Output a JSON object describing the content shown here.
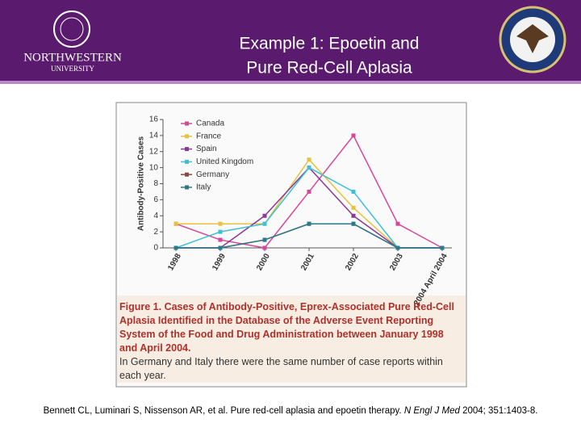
{
  "header": {
    "title_line1": "Example 1: Epoetin and",
    "title_line2": "Pure Red-Cell Aplasia",
    "logo_left_name": "NORTHWESTERN",
    "logo_left_sub": "UNIVERSITY"
  },
  "chart_data": {
    "type": "line",
    "ylabel": "Antibody-Positive Cases",
    "categories": [
      "1998",
      "1999",
      "2000",
      "2001",
      "2002",
      "2003",
      "2004 April 2004"
    ],
    "ylim": [
      0,
      16
    ],
    "yticks": [
      0,
      2,
      4,
      6,
      8,
      10,
      12,
      14,
      16
    ],
    "grid": false,
    "legend": "upper left",
    "series": [
      {
        "name": "Canada",
        "color": "#d6479a",
        "values": [
          3,
          1,
          0,
          7,
          14,
          3,
          0
        ]
      },
      {
        "name": "France",
        "color": "#e8c23c",
        "values": [
          3,
          3,
          3,
          11,
          5,
          0,
          0
        ]
      },
      {
        "name": "Spain",
        "color": "#8a3a96",
        "values": [
          0,
          0,
          4,
          10,
          4,
          0,
          0
        ]
      },
      {
        "name": "United Kingdom",
        "color": "#3cc0d8",
        "values": [
          0,
          2,
          3,
          10,
          7,
          0,
          0
        ]
      },
      {
        "name": "Germany",
        "color": "#8b4a3a",
        "values": [
          0,
          0,
          1,
          3,
          3,
          0,
          0
        ]
      },
      {
        "name": "Italy",
        "color": "#2a7a8a",
        "values": [
          0,
          0,
          1,
          3,
          3,
          0,
          0
        ]
      }
    ]
  },
  "caption": {
    "title": "Figure 1. Cases of Antibody-Positive, Eprex-Associated Pure Red-Cell Aplasia Identified in the Database of the Adverse Event Reporting System of the Food and Drug Administration between January 1998 and April 2004.",
    "text": "In Germany and Italy there were the same number of case reports within each year."
  },
  "citation": {
    "authors": "Bennett CL, Luminari S, Nissenson AR, et al. Pure red-cell aplasia and epoetin therapy.",
    "journal": "N Engl J Med",
    "details": "2004; 351:1403-8."
  }
}
